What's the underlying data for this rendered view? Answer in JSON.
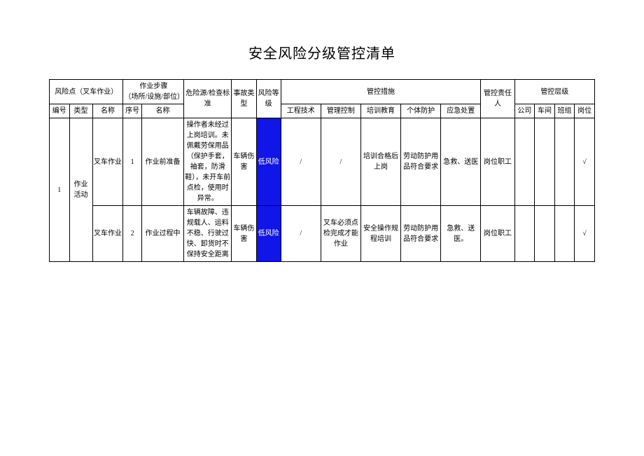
{
  "title": "安全风险分级管控清单",
  "header": {
    "risk_point_group": "风险点（叉车作业）",
    "step_group": "作业步骤\n（场所/设施/部位）",
    "hazard": "危险源/检查标准",
    "accident_type": "事故类型",
    "risk_level": "风险等级",
    "control_measures": "管控措施",
    "responsible": "管控责任人",
    "control_level": "管控层级",
    "col_no": "编号",
    "col_type": "类型",
    "col_name": "名称",
    "col_seq": "序号",
    "col_step_name": "名称",
    "col_eng": "工程技术",
    "col_mgmt": "管理控制",
    "col_train": "培训教育",
    "col_ppe": "个体防护",
    "col_emerg": "应急处置",
    "col_company": "公司",
    "col_workshop": "车间",
    "col_team": "班组",
    "col_post": "岗位"
  },
  "body": {
    "no": "1",
    "type": "作业活动",
    "name": "叉车作业",
    "rows": [
      {
        "seq": "1",
        "step": "作业前准备",
        "hazard": "操作者未经过上岗培训。未佩戴劳保用品（保护手套，袖套，防滑鞋），未开车前点检，使用时异常。",
        "accident": "车辆伤害",
        "risk": "低风险",
        "eng": "/",
        "mgmt": "/",
        "train": "培训合格后上岗",
        "ppe": "劳动防护用品符合要求",
        "emerg": "急救、送医",
        "resp": "岗位职工",
        "company": "",
        "workshop": "",
        "team": "",
        "post": "√"
      },
      {
        "seq": "2",
        "step": "作业过程中",
        "hazard": "车辆故障、违规载人、运料不稳、行驶过快、卸货时不保持安全距离",
        "accident": "车辆伤害",
        "risk": "低风险",
        "eng": "/",
        "mgmt": "叉车必须点检完成才能作业",
        "train": "安全操作规程培训",
        "ppe": "劳动防护用品符合要求",
        "emerg": "急救、送医。",
        "resp": "岗位职工",
        "company": "",
        "workshop": "",
        "team": "",
        "post": "√"
      }
    ]
  },
  "colors": {
    "risk_low_bg": "#1015e8",
    "risk_low_fg": "#ffffff",
    "border": "#000000",
    "bg": "#ffffff"
  }
}
